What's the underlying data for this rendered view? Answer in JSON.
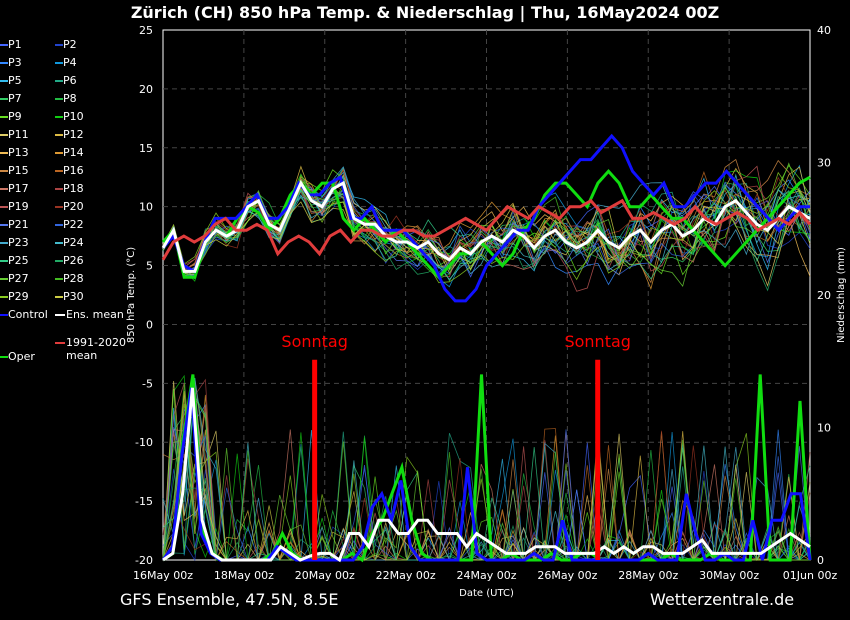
{
  "title": "Zürich  (CH)  850 hPa Temp. & Niederschlag | Thu, 16May2024 00Z",
  "footer": {
    "left": "GFS Ensemble, 47.5N, 8.5E",
    "right": "Wetterzentrale.de"
  },
  "colors": {
    "control": "#1010ff",
    "ens_mean": "#ffffff",
    "clim_mean": "#e03c3c",
    "oper": "#10dd10",
    "sunday": "#ff0000"
  },
  "legend": {
    "members": [
      {
        "label": "P1",
        "color": "#4466ff"
      },
      {
        "label": "P2",
        "color": "#2244cc"
      },
      {
        "label": "P3",
        "color": "#3388ff"
      },
      {
        "label": "P4",
        "color": "#1199dd"
      },
      {
        "label": "P5",
        "color": "#33bbee"
      },
      {
        "label": "P6",
        "color": "#22aa88"
      },
      {
        "label": "P7",
        "color": "#33cc66"
      },
      {
        "label": "P8",
        "color": "#22bb44"
      },
      {
        "label": "P9",
        "color": "#66dd22"
      },
      {
        "label": "P10",
        "color": "#11cc11"
      },
      {
        "label": "P11",
        "color": "#ddcc66"
      },
      {
        "label": "P12",
        "color": "#ddbb44"
      },
      {
        "label": "P13",
        "color": "#eebb55"
      },
      {
        "label": "P14",
        "color": "#dd9933"
      },
      {
        "label": "P15",
        "color": "#cc8844"
      },
      {
        "label": "P16",
        "color": "#bb6622"
      },
      {
        "label": "P17",
        "color": "#cc7766"
      },
      {
        "label": "P18",
        "color": "#aa4444"
      },
      {
        "label": "P19",
        "color": "#bb5555"
      },
      {
        "label": "P20",
        "color": "#993322"
      },
      {
        "label": "P21",
        "color": "#5577ee"
      },
      {
        "label": "P22",
        "color": "#3366dd"
      },
      {
        "label": "P23",
        "color": "#44aacc"
      },
      {
        "label": "P24",
        "color": "#44bbcc"
      },
      {
        "label": "P25",
        "color": "#33cc88"
      },
      {
        "label": "P26",
        "color": "#22aa66"
      },
      {
        "label": "P27",
        "color": "#66cc33"
      },
      {
        "label": "P28",
        "color": "#44bb22"
      },
      {
        "label": "P29",
        "color": "#88cc22"
      },
      {
        "label": "P30",
        "color": "#cccc44"
      }
    ],
    "control": "Control",
    "ens_mean": "Ens. mean",
    "clim_mean": "1991-2020 mean",
    "oper": "Oper"
  },
  "chart_data": {
    "type": "line",
    "ylabel": "850 hPa Temp. (°C)",
    "ylabel_right": "Niederschlag (mm)",
    "xlabel": "Date (UTC)",
    "ylim": [
      -20,
      25
    ],
    "ylim_right": [
      0,
      40
    ],
    "yticks": [
      -20,
      -15,
      -10,
      -5,
      0,
      5,
      10,
      15,
      20,
      25
    ],
    "yticks_right": [
      0,
      10,
      20,
      30,
      40
    ],
    "xlim_days": [
      0,
      16
    ],
    "xticks": [
      "16May 00z",
      "18May 00z",
      "20May 00z",
      "22May 00z",
      "24May 00z",
      "26May 00z",
      "28May 00z",
      "30May 00z",
      "01Jun 00z"
    ],
    "annotations": [
      {
        "text": "Sonntag",
        "day": 3.75
      },
      {
        "text": "Sonntag",
        "day": 10.75
      }
    ],
    "temperature_series": [
      {
        "name": "Oper",
        "values": [
          7,
          8,
          4,
          4,
          7,
          8,
          7.5,
          9,
          10,
          9.5,
          8,
          9,
          11,
          12,
          11,
          12,
          12,
          9,
          8,
          9,
          8,
          7,
          8,
          7,
          6,
          5,
          4,
          5,
          6,
          6,
          7,
          6,
          5,
          6,
          8,
          9,
          11,
          12,
          12,
          11,
          10,
          12,
          13,
          12,
          10,
          10,
          11,
          10,
          9,
          9,
          8,
          7,
          6,
          5,
          6,
          7,
          8,
          9,
          10,
          11,
          12,
          12.5
        ]
      },
      {
        "name": "Control",
        "values": [
          6.5,
          7.5,
          5,
          4.5,
          7,
          9,
          9,
          9,
          10,
          11,
          9,
          9,
          10,
          12,
          11,
          11,
          12,
          12.5,
          9,
          9,
          10,
          8,
          8,
          8,
          7,
          6,
          5,
          3,
          2,
          2,
          3,
          5,
          6,
          7,
          8,
          8,
          10,
          11,
          12,
          13,
          14,
          14,
          15,
          16,
          15,
          13,
          12,
          11,
          12,
          10,
          10,
          11,
          12,
          12,
          13,
          12,
          11,
          10,
          9,
          8,
          9,
          10,
          10
        ]
      },
      {
        "name": "Ens. mean",
        "values": [
          6.5,
          8,
          4.5,
          4.5,
          7,
          8,
          7.5,
          8,
          10,
          10.5,
          8.5,
          8,
          10,
          12,
          10.5,
          10,
          11.5,
          12,
          9,
          8.5,
          8.5,
          7.5,
          7,
          7,
          6.5,
          7,
          6,
          5.5,
          6.5,
          6,
          7,
          7.5,
          7,
          8,
          7.5,
          6.5,
          7.5,
          8,
          7,
          6.5,
          7,
          8,
          7,
          6.5,
          7.5,
          8,
          7,
          8,
          8.5,
          7.5,
          8,
          9,
          8.5,
          10,
          10.5,
          9.5,
          8.5,
          8,
          9,
          10,
          9.5,
          9
        ]
      },
      {
        "name": "1991-2020 mean",
        "values": [
          5.5,
          7,
          7.5,
          7,
          7.5,
          8.5,
          9,
          8,
          8,
          8.5,
          8,
          6,
          7,
          7.5,
          7,
          6,
          7.5,
          8,
          7,
          8,
          8,
          7.5,
          7.5,
          8,
          8,
          7.5,
          7.5,
          8,
          8.5,
          9,
          8.5,
          8,
          9,
          10,
          9.5,
          9,
          10,
          9.5,
          9,
          10,
          10,
          10.5,
          9.5,
          10,
          10.5,
          9,
          9,
          9.5,
          9,
          8.5,
          9,
          10,
          9,
          8.5,
          9,
          9.5,
          9,
          8,
          8.5,
          9,
          8.5,
          9.5,
          8.5
        ]
      }
    ],
    "precip_series": [
      {
        "name": "Oper",
        "values": [
          0,
          0.5,
          9,
          14,
          2,
          0.5,
          0,
          0,
          0,
          0,
          0,
          0.5,
          2,
          0.5,
          0,
          0,
          0,
          0,
          0,
          0.5,
          0,
          2,
          3,
          5,
          7,
          3,
          0.5,
          0,
          0,
          0,
          0,
          0,
          14,
          0,
          0,
          0.5,
          0,
          0,
          0,
          0.5,
          0,
          0,
          0.5,
          0.5,
          0,
          0,
          0,
          0,
          0,
          0,
          0,
          0.5,
          0,
          0,
          0,
          0.5,
          0,
          0,
          0,
          0,
          14,
          0,
          0,
          0,
          12,
          0
        ]
      },
      {
        "name": "Control",
        "values": [
          0,
          1,
          8,
          13,
          2,
          0.5,
          0,
          0,
          0,
          0,
          0,
          0,
          1,
          0.5,
          0,
          0,
          0,
          0,
          0,
          0,
          0,
          1,
          4,
          5,
          3,
          6,
          1,
          0,
          0,
          0,
          0,
          0,
          7,
          0.5,
          0,
          0,
          0,
          0,
          0,
          0.5,
          0,
          0,
          3,
          0,
          0,
          0,
          0,
          0,
          0,
          0,
          0,
          0.5,
          0,
          0,
          0,
          5,
          2,
          0,
          0,
          0.5,
          0,
          0,
          3,
          0,
          3,
          3,
          5,
          5,
          0
        ]
      },
      {
        "name": "Ens. mean",
        "values": [
          0,
          0.5,
          5,
          13,
          3,
          0.5,
          0,
          0,
          0,
          0,
          0,
          0,
          1,
          0.5,
          0,
          0.3,
          0.5,
          0.5,
          0,
          2,
          2,
          1,
          3,
          3,
          2,
          2,
          3,
          3,
          2,
          2,
          2,
          1,
          2,
          1.5,
          1,
          0.5,
          0.5,
          0.5,
          1,
          1,
          1,
          0.5,
          0.5,
          0.5,
          0.5,
          1,
          0.5,
          1,
          0.5,
          1,
          1,
          0.5,
          0.5,
          0.5,
          1,
          1.5,
          0.5,
          0.5,
          0.5,
          0.5,
          0.5,
          0.5,
          1,
          1.5,
          2,
          1.5,
          1
        ]
      }
    ]
  }
}
